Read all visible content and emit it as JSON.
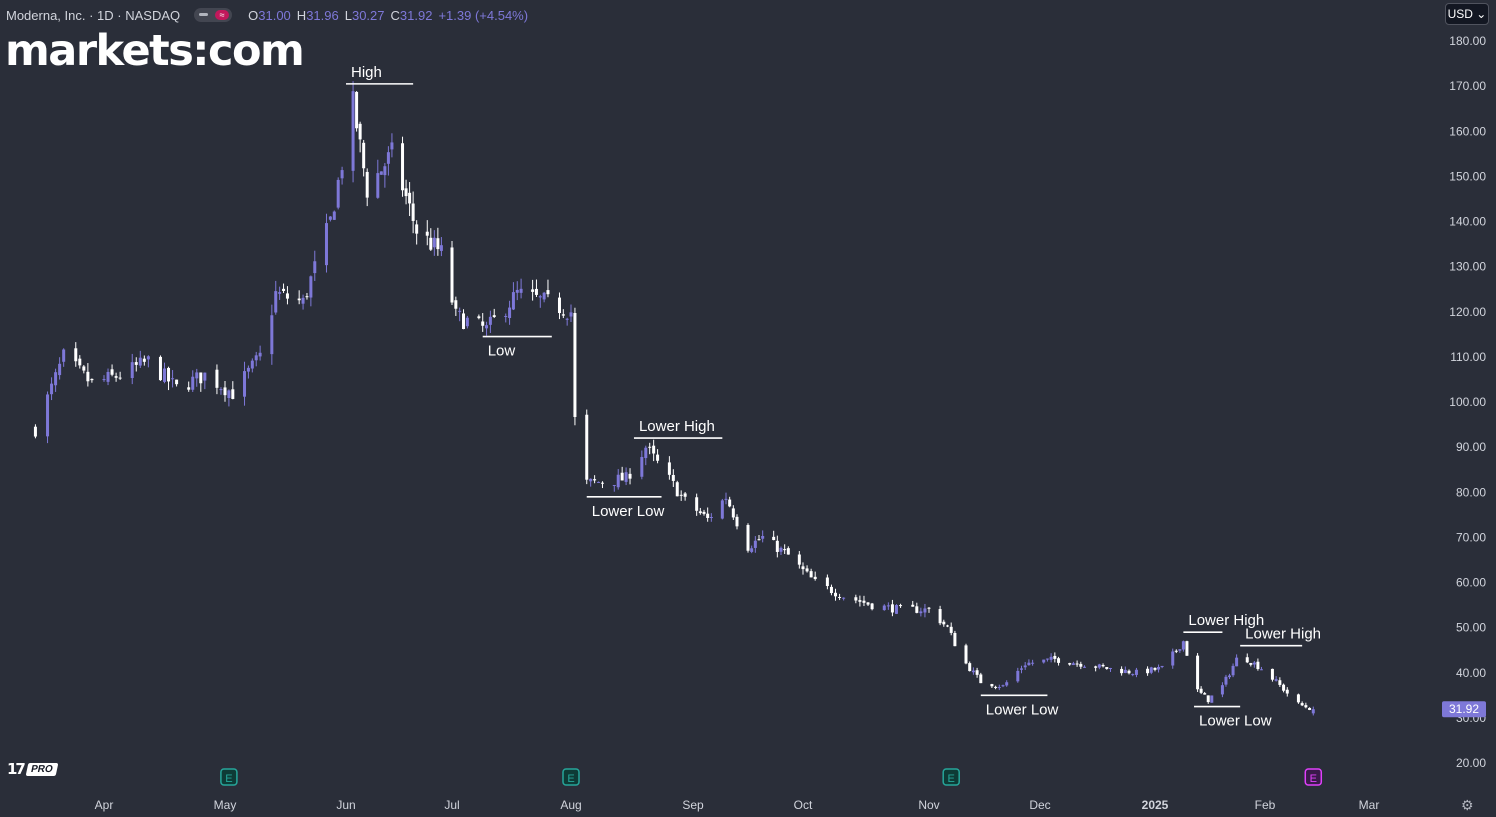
{
  "header": {
    "symbol": "Moderna, Inc. · 1D · NASDAQ",
    "open_label": "O",
    "open": "31.00",
    "high_label": "H",
    "high": "31.96",
    "low_label": "L",
    "low": "30.27",
    "close_label": "C",
    "close": "31.92",
    "change": "+1.39 (+4.54%)"
  },
  "brand": "markets:com",
  "currency": "USD ⌄",
  "tv_logo": "17",
  "tv_pro": "PRO",
  "settings_icon": "gear-icon",
  "colors": {
    "background": "#2a2e39",
    "up": "#7e78d8",
    "down": "#ffffff",
    "annotation": "#ffffff",
    "price_tag": "#7e78d8",
    "earnings_green": "#26a69a",
    "earnings_purple": "#e040fb"
  },
  "chart_data": {
    "type": "candlestick",
    "title": "",
    "y_axis_side": "right",
    "ylim": [
      16,
      184
    ],
    "y_ticks": [
      "180.00",
      "170.00",
      "160.00",
      "150.00",
      "140.00",
      "130.00",
      "120.00",
      "110.00",
      "100.00",
      "90.00",
      "80.00",
      "70.00",
      "60.00",
      "50.00",
      "40.00",
      "30.00",
      "20.00"
    ],
    "x_ticks": [
      "Apr",
      "May",
      "Jun",
      "Jul",
      "Aug",
      "Sep",
      "Oct",
      "Nov",
      "Dec",
      "2025",
      "Feb",
      "Mar"
    ],
    "last_price": "31.92",
    "series": [
      {
        "name": "",
        "keypoints": [
          [
            "2024-03-15",
            94
          ],
          [
            "2024-03-22",
            110
          ],
          [
            "2024-03-29",
            104
          ],
          [
            "2024-04-05",
            106
          ],
          [
            "2024-04-12",
            109
          ],
          [
            "2024-04-19",
            103
          ],
          [
            "2024-04-26",
            106
          ],
          [
            "2024-05-03",
            102
          ],
          [
            "2024-05-10",
            110
          ],
          [
            "2024-05-14",
            124
          ],
          [
            "2024-05-21",
            122
          ],
          [
            "2024-05-28",
            140
          ],
          [
            "2024-06-03",
            166
          ],
          [
            "2024-06-07",
            147
          ],
          [
            "2024-06-14",
            155
          ],
          [
            "2024-06-21",
            138
          ],
          [
            "2024-06-28",
            133
          ],
          [
            "2024-07-02",
            119
          ],
          [
            "2024-07-10",
            116
          ],
          [
            "2024-07-18",
            124
          ],
          [
            "2024-07-26",
            122
          ],
          [
            "2024-08-01",
            120
          ],
          [
            "2024-08-02",
            96
          ],
          [
            "2024-08-05",
            82
          ],
          [
            "2024-08-15",
            83
          ],
          [
            "2024-08-20",
            90
          ],
          [
            "2024-08-30",
            78
          ],
          [
            "2024-09-05",
            74
          ],
          [
            "2024-09-10",
            79
          ],
          [
            "2024-09-16",
            68
          ],
          [
            "2024-09-20",
            70
          ],
          [
            "2024-09-27",
            66
          ],
          [
            "2024-10-04",
            60
          ],
          [
            "2024-10-11",
            57
          ],
          [
            "2024-10-18",
            55
          ],
          [
            "2024-10-25",
            54
          ],
          [
            "2024-11-01",
            54
          ],
          [
            "2024-11-06",
            50
          ],
          [
            "2024-11-10",
            43
          ],
          [
            "2024-11-15",
            38
          ],
          [
            "2024-11-21",
            37
          ],
          [
            "2024-11-27",
            42
          ],
          [
            "2024-12-05",
            43
          ],
          [
            "2024-12-12",
            42
          ],
          [
            "2024-12-19",
            41
          ],
          [
            "2024-12-27",
            40
          ],
          [
            "2025-01-03",
            41
          ],
          [
            "2025-01-09",
            47
          ],
          [
            "2025-01-13",
            36
          ],
          [
            "2025-01-16",
            34
          ],
          [
            "2025-01-20",
            37
          ],
          [
            "2025-01-24",
            43
          ],
          [
            "2025-01-27",
            43
          ],
          [
            "2025-01-31",
            41
          ],
          [
            "2025-02-04",
            38
          ],
          [
            "2025-02-10",
            33
          ],
          [
            "2025-02-14",
            31.92
          ]
        ]
      }
    ],
    "annotations": [
      {
        "label": "High",
        "date": "2024-06-01",
        "date_end": "2024-06-20",
        "level": 170.5
      },
      {
        "label": "Low",
        "date": "2024-07-09",
        "date_end": "2024-07-27",
        "level": 114.5
      },
      {
        "label": "Lower High",
        "date": "2024-08-17",
        "date_end": "2024-09-09",
        "level": 92
      },
      {
        "label": "Lower Low",
        "date": "2024-08-05",
        "date_end": "2024-08-24",
        "level": 79
      },
      {
        "label": "Lower Low",
        "date": "2024-11-15",
        "date_end": "2024-12-03",
        "level": 35
      },
      {
        "label": "Lower High",
        "date": "2025-01-09",
        "date_end": "2025-01-20",
        "level": 49
      },
      {
        "label": "Lower Low",
        "date": "2025-01-12",
        "date_end": "2025-01-25",
        "level": 32.5
      },
      {
        "label": "Lower High",
        "date": "2025-01-25",
        "date_end": "2025-02-11",
        "level": 46
      }
    ],
    "earnings_markers": [
      {
        "label": "E",
        "date": "2024-05-02",
        "color": "green"
      },
      {
        "label": "E",
        "date": "2024-08-01",
        "color": "green"
      },
      {
        "label": "E",
        "date": "2024-11-07",
        "color": "green"
      },
      {
        "label": "E",
        "date": "2025-02-14",
        "color": "purple"
      }
    ]
  }
}
